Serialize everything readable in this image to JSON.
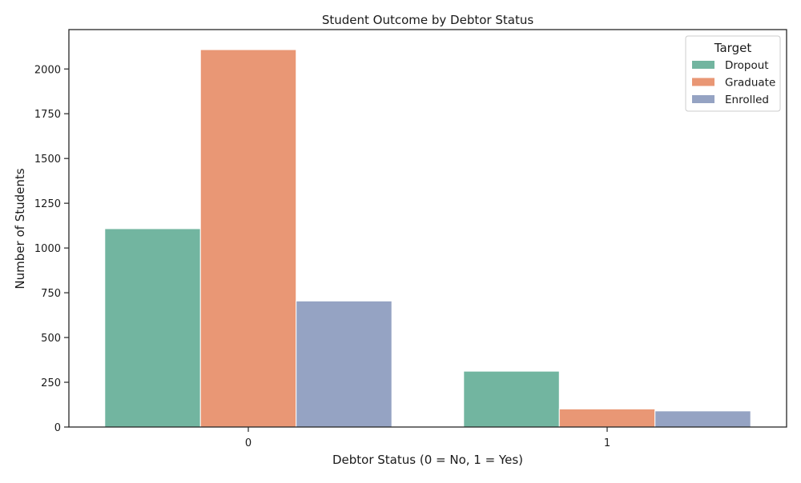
{
  "chart_data": {
    "type": "bar",
    "title": "Student Outcome by Debtor Status",
    "xlabel": "Debtor Status (0 = No, 1 = Yes)",
    "ylabel": "Number of Students",
    "categories": [
      "0",
      "1"
    ],
    "ylim": [
      0,
      2220
    ],
    "yticks": [
      0,
      250,
      500,
      750,
      1000,
      1250,
      1500,
      1750,
      2000
    ],
    "grid": false,
    "legend": {
      "title": "Target",
      "placement": "top-right"
    },
    "series": [
      {
        "name": "Dropout",
        "color": "#72b5a0",
        "values": [
          1108,
          312
        ]
      },
      {
        "name": "Graduate",
        "color": "#e99775",
        "values": [
          2108,
          101
        ]
      },
      {
        "name": "Enrolled",
        "color": "#95a3c3",
        "values": [
          704,
          90
        ]
      }
    ]
  }
}
